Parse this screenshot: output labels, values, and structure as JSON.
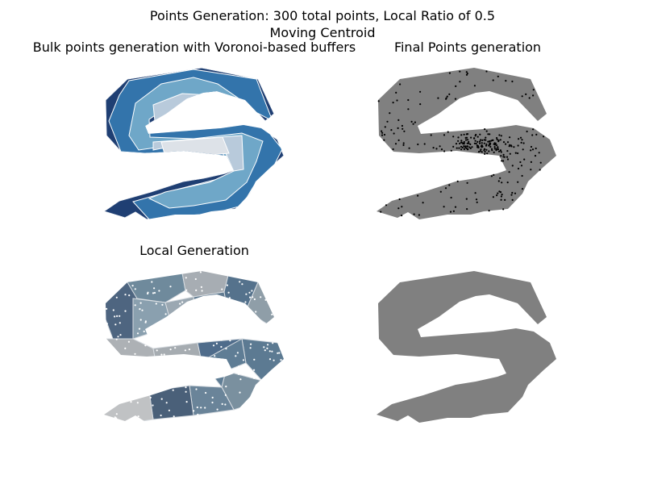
{
  "figure": {
    "title_line1": "Points Generation: 300 total points, Local Ratio of 0.5",
    "title_line2": "Moving Centroid"
  },
  "chart_data": [
    {
      "type": "map",
      "title": "Bulk points generation with Voronoi-based buffers",
      "layers": [
        {
          "name": "",
          "color": "#1f3f73"
        },
        {
          "name": "",
          "color": "#3374ab"
        },
        {
          "name": "",
          "color": "#6fa7c8"
        },
        {
          "name": "",
          "color": "#b8cadb"
        },
        {
          "name": "",
          "color": "#dde2e8"
        }
      ]
    },
    {
      "type": "scatter",
      "title": "Final Points generation",
      "total_points": 300,
      "polygon_color": "#808080",
      "point_color": "#000000"
    },
    {
      "type": "map",
      "title": "Local Generation",
      "voronoi_cells": 17,
      "point_color": "#ffffff"
    },
    {
      "type": "map",
      "title": "",
      "polygon_color": "#808080"
    }
  ]
}
